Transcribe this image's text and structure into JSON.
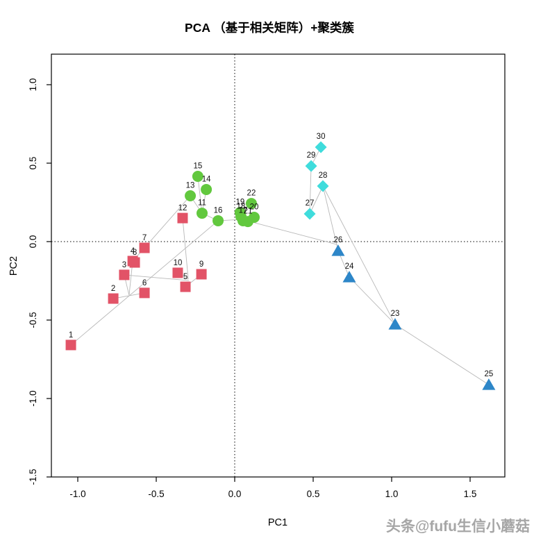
{
  "title": "PCA （基于相关矩阵）+聚类簇",
  "watermark": "头条@fufu生信小蘑菇",
  "chart_data": {
    "type": "scatter",
    "title": "PCA （基于相关矩阵）+聚类簇",
    "xlabel": "PC1",
    "ylabel": "PC2",
    "xlim": [
      -1.17,
      1.72
    ],
    "ylim": [
      -1.5,
      1.2
    ],
    "x_ticks": [
      -1.0,
      -0.5,
      0.0,
      0.5,
      1.0,
      1.5
    ],
    "x_tick_labels": [
      "-1.0",
      "-0.5",
      "0.0",
      "0.5",
      "1.0",
      "1.5"
    ],
    "y_ticks": [
      1.0,
      0.5,
      0.0,
      -0.5,
      -1.0,
      -1.5
    ],
    "y_tick_labels": [
      "1.0",
      "0.5",
      "0.0",
      "-0.5",
      "-1.0",
      "-1.5"
    ],
    "grid": false,
    "zero_lines": "dotted-black-at-0-0",
    "legend": "none",
    "clusters": [
      {
        "name": "cluster-1",
        "marker": "square",
        "color": "#e25367"
      },
      {
        "name": "cluster-2",
        "marker": "circle",
        "color": "#62c83e"
      },
      {
        "name": "cluster-3",
        "marker": "triangle",
        "color": "#2d86c8"
      },
      {
        "name": "cluster-4",
        "marker": "diamond",
        "color": "#3fdcdc"
      }
    ],
    "points": [
      {
        "label": "1",
        "x": -1.044,
        "y": -0.659,
        "cluster": 0
      },
      {
        "label": "2",
        "x": -0.774,
        "y": -0.363,
        "cluster": 0
      },
      {
        "label": "3",
        "x": -0.704,
        "y": -0.212,
        "cluster": 0
      },
      {
        "label": "4",
        "x": -0.65,
        "y": -0.124,
        "cluster": 0
      },
      {
        "label": "5",
        "x": -0.314,
        "y": -0.288,
        "cluster": 0
      },
      {
        "label": "6",
        "x": -0.575,
        "y": -0.327,
        "cluster": 0
      },
      {
        "label": "7",
        "x": -0.575,
        "y": -0.04,
        "cluster": 0
      },
      {
        "label": "8",
        "x": -0.637,
        "y": -0.133,
        "cluster": 0
      },
      {
        "label": "9",
        "x": -0.212,
        "y": -0.208,
        "cluster": 0
      },
      {
        "label": "10",
        "x": -0.363,
        "y": -0.199,
        "cluster": 0
      },
      {
        "label": "11",
        "x": -0.208,
        "y": 0.181,
        "cluster": 1
      },
      {
        "label": "12",
        "x": -0.332,
        "y": 0.15,
        "cluster": 0
      },
      {
        "label": "13",
        "x": -0.283,
        "y": 0.292,
        "cluster": 1
      },
      {
        "label": "14",
        "x": -0.181,
        "y": 0.332,
        "cluster": 1
      },
      {
        "label": "15",
        "x": -0.235,
        "y": 0.416,
        "cluster": 1
      },
      {
        "label": "16",
        "x": -0.106,
        "y": 0.133,
        "cluster": 1
      },
      {
        "label": "17",
        "x": 0.053,
        "y": 0.133,
        "cluster": 1
      },
      {
        "label": "18",
        "x": 0.04,
        "y": 0.159,
        "cluster": 1
      },
      {
        "label": "19",
        "x": 0.035,
        "y": 0.186,
        "cluster": 1
      },
      {
        "label": "20",
        "x": 0.124,
        "y": 0.155,
        "cluster": 1
      },
      {
        "label": "21",
        "x": 0.084,
        "y": 0.128,
        "cluster": 1
      },
      {
        "label": "22",
        "x": 0.106,
        "y": 0.243,
        "cluster": 1
      },
      {
        "label": "23",
        "x": 1.022,
        "y": -0.527,
        "cluster": 2
      },
      {
        "label": "24",
        "x": 0.73,
        "y": -0.226,
        "cluster": 2
      },
      {
        "label": "25",
        "x": 1.619,
        "y": -0.912,
        "cluster": 2
      },
      {
        "label": "26",
        "x": 0.659,
        "y": -0.058,
        "cluster": 2
      },
      {
        "label": "27",
        "x": 0.478,
        "y": 0.177,
        "cluster": 3
      },
      {
        "label": "28",
        "x": 0.562,
        "y": 0.354,
        "cluster": 3
      },
      {
        "label": "29",
        "x": 0.487,
        "y": 0.482,
        "cluster": 3
      },
      {
        "label": "30",
        "x": 0.549,
        "y": 0.602,
        "cluster": 3
      }
    ],
    "tree_segments": [
      [
        -1.044,
        -0.659,
        -0.106,
        0.133
      ],
      [
        -0.774,
        -0.363,
        -0.575,
        -0.327
      ],
      [
        -0.704,
        -0.212,
        -0.673,
        -0.341
      ],
      [
        -0.673,
        -0.341,
        -0.65,
        -0.124
      ],
      [
        -0.65,
        -0.124,
        -0.575,
        -0.04
      ],
      [
        -0.704,
        -0.212,
        -0.292,
        -0.248
      ],
      [
        -0.314,
        -0.288,
        -0.212,
        -0.208
      ],
      [
        -0.332,
        0.15,
        -0.296,
        -0.239
      ],
      [
        -0.296,
        -0.239,
        -0.363,
        -0.199
      ],
      [
        -0.575,
        -0.04,
        -0.283,
        0.292
      ],
      [
        -0.283,
        0.292,
        -0.208,
        0.181
      ],
      [
        -0.181,
        0.332,
        -0.208,
        0.181
      ],
      [
        -0.235,
        0.416,
        -0.208,
        0.181
      ],
      [
        -0.208,
        0.181,
        -0.106,
        0.133
      ],
      [
        -0.106,
        0.133,
        0.053,
        0.142
      ],
      [
        0.062,
        0.137,
        0.65,
        -0.018
      ],
      [
        0.478,
        0.177,
        0.487,
        0.482
      ],
      [
        0.487,
        0.482,
        0.549,
        0.602
      ],
      [
        0.478,
        0.177,
        0.562,
        0.354
      ],
      [
        0.562,
        0.354,
        0.659,
        -0.058
      ],
      [
        0.562,
        0.354,
        1.022,
        -0.527
      ],
      [
        0.659,
        -0.058,
        0.73,
        -0.226
      ],
      [
        0.73,
        -0.226,
        1.022,
        -0.527
      ],
      [
        1.022,
        -0.527,
        1.619,
        -0.912
      ]
    ],
    "tree_line_color": "#b8b8b8",
    "box_color": "#000000"
  }
}
